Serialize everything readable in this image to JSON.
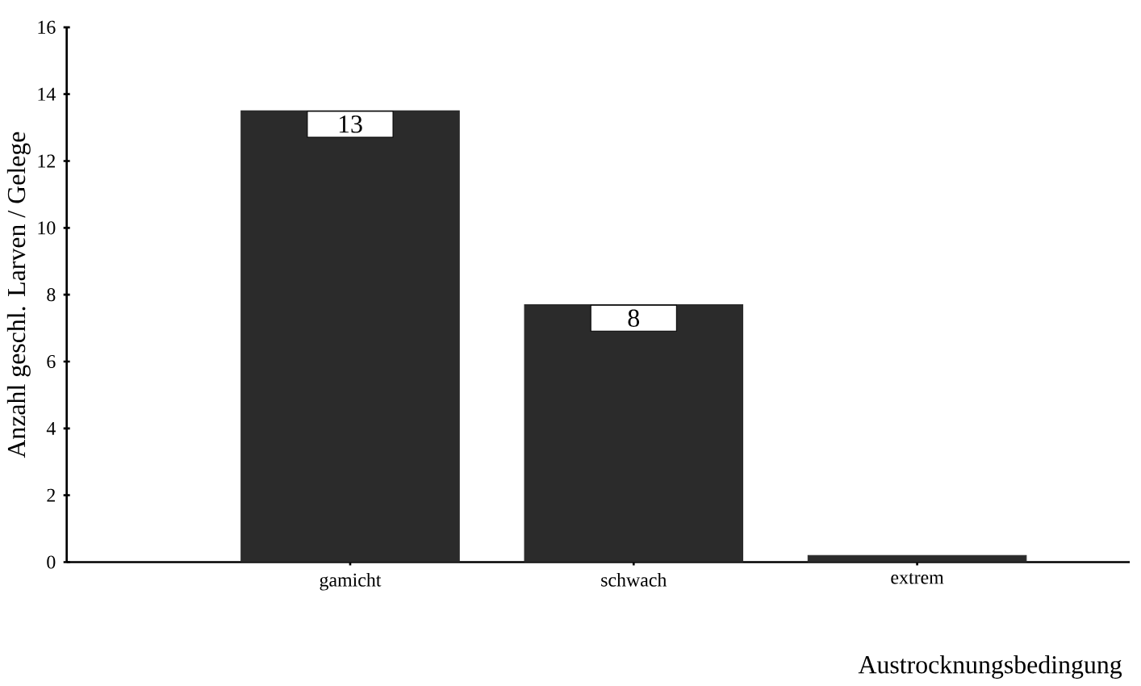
{
  "chart_data": {
    "type": "bar",
    "xlabel": "Austrocknungsbedingung",
    "ylabel": "Anzahl geschl. Larven / Gelege",
    "categories": [
      "gamicht",
      "schwach",
      "extrem"
    ],
    "values": [
      13.5,
      7.7,
      0.2
    ],
    "value_labels": [
      "13",
      "8",
      null
    ],
    "color": "#2b2b2b",
    "ylim": [
      0,
      16
    ],
    "yticks": [
      0,
      2,
      4,
      6,
      8,
      10,
      12,
      14,
      16
    ],
    "grid": false
  }
}
